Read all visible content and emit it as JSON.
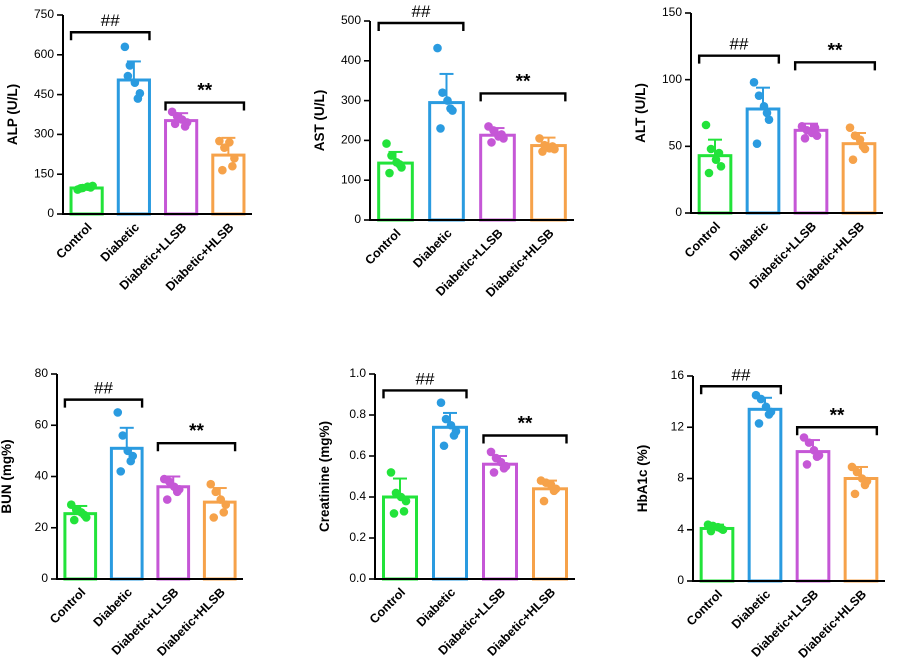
{
  "colors": [
    "#22e33a",
    "#2a9be0",
    "#c557d6",
    "#f6a24a"
  ],
  "chart_data": [
    {
      "type": "bar",
      "ylabel": "ALP (U/L)",
      "ylim": [
        0,
        750
      ],
      "yticks": [
        0,
        150,
        300,
        450,
        600,
        750
      ],
      "categories": [
        "Control",
        "Diabetic",
        "Diabetic+LLSB",
        "Diabetic+HLSB"
      ],
      "values": [
        98,
        505,
        352,
        222
      ],
      "errors": [
        8,
        70,
        28,
        65
      ],
      "points": [
        [
          92,
          98,
          103,
          106,
          97,
          100
        ],
        [
          630,
          560,
          495,
          455,
          520,
          435
        ],
        [
          385,
          368,
          356,
          345,
          340,
          330
        ],
        [
          275,
          250,
          270,
          210,
          165,
          180
        ]
      ],
      "sig1": {
        "label": "##",
        "from": 0,
        "to": 1,
        "y": 685
      },
      "sig2": {
        "label": "**",
        "from": 2,
        "to": 3,
        "y": 420
      }
    },
    {
      "type": "bar",
      "ylabel": "AST (U/L)",
      "ylim": [
        0,
        500
      ],
      "yticks": [
        0,
        100,
        200,
        300,
        400,
        500
      ],
      "categories": [
        "Control",
        "Diabetic",
        "Diabetic+LLSB",
        "Diabetic+HLSB"
      ],
      "values": [
        143,
        295,
        213,
        187
      ],
      "errors": [
        28,
        72,
        18,
        20
      ],
      "points": [
        [
          192,
          162,
          145,
          132,
          118,
          140
        ],
        [
          432,
          320,
          300,
          275,
          230,
          280
        ],
        [
          235,
          225,
          210,
          205,
          195,
          215
        ],
        [
          205,
          188,
          180,
          178,
          172,
          185
        ]
      ],
      "sig1": {
        "label": "##",
        "from": 0,
        "to": 1,
        "y": 495
      },
      "sig2": {
        "label": "**",
        "from": 2,
        "to": 3,
        "y": 318
      }
    },
    {
      "type": "bar",
      "ylabel": "ALT (U/L)",
      "ylim": [
        0,
        150
      ],
      "yticks": [
        0,
        50,
        100,
        150
      ],
      "categories": [
        "Control",
        "Diabetic",
        "Diabetic+LLSB",
        "Diabetic+HLSB"
      ],
      "values": [
        43,
        78,
        62,
        52
      ],
      "errors": [
        12,
        16,
        5,
        8
      ],
      "points": [
        [
          66,
          48,
          40,
          35,
          30,
          45
        ],
        [
          98,
          88,
          80,
          70,
          52,
          75
        ],
        [
          65,
          62,
          60,
          58,
          56,
          64
        ],
        [
          64,
          58,
          55,
          48,
          40,
          50
        ]
      ],
      "sig1": {
        "label": "##",
        "from": 0,
        "to": 1,
        "y": 118
      },
      "sig2": {
        "label": "**",
        "from": 2,
        "to": 3,
        "y": 113
      }
    },
    {
      "type": "bar",
      "ylabel": "BUN (mg%)",
      "ylim": [
        0,
        80
      ],
      "yticks": [
        0,
        20,
        40,
        60,
        80
      ],
      "categories": [
        "Control",
        "Diabetic",
        "Diabetic+LLSB",
        "Diabetic+HLSB"
      ],
      "values": [
        25.5,
        51,
        36,
        30
      ],
      "errors": [
        3,
        8,
        4,
        5.5
      ],
      "points": [
        [
          29,
          27,
          26,
          24,
          23,
          25
        ],
        [
          65,
          56,
          50,
          48,
          42,
          46
        ],
        [
          39,
          38,
          36,
          35,
          31,
          34
        ],
        [
          37,
          34,
          31,
          29,
          24,
          26
        ]
      ],
      "sig1": {
        "label": "##",
        "from": 0,
        "to": 1,
        "y": 70
      },
      "sig2": {
        "label": "**",
        "from": 2,
        "to": 3,
        "y": 53
      }
    },
    {
      "type": "bar",
      "ylabel": "Creatinine (mg%)",
      "ylim": [
        0,
        1.0
      ],
      "yticks": [
        0.0,
        0.2,
        0.4,
        0.6,
        0.8,
        1.0
      ],
      "categories": [
        "Control",
        "Diabetic",
        "Diabetic+LLSB",
        "Diabetic+HLSB"
      ],
      "values": [
        0.4,
        0.74,
        0.56,
        0.44
      ],
      "errors": [
        0.09,
        0.07,
        0.04,
        0.04
      ],
      "points": [
        [
          0.52,
          0.42,
          0.4,
          0.38,
          0.32,
          0.33
        ],
        [
          0.86,
          0.78,
          0.75,
          0.72,
          0.65,
          0.7
        ],
        [
          0.62,
          0.59,
          0.57,
          0.55,
          0.52,
          0.54
        ],
        [
          0.48,
          0.47,
          0.46,
          0.44,
          0.38,
          0.43
        ]
      ],
      "sig1": {
        "label": "##",
        "from": 0,
        "to": 1,
        "y": 0.92
      },
      "sig2": {
        "label": "**",
        "from": 2,
        "to": 3,
        "y": 0.7
      }
    },
    {
      "type": "bar",
      "ylabel": "HbA1c (%)",
      "ylim": [
        0,
        16
      ],
      "yticks": [
        0,
        4,
        8,
        12,
        16
      ],
      "categories": [
        "Control",
        "Diabetic",
        "Diabetic+LLSB",
        "Diabetic+HLSB"
      ],
      "values": [
        4.1,
        13.4,
        10.1,
        8.0
      ],
      "errors": [
        0.3,
        0.9,
        0.9,
        0.9
      ],
      "points": [
        [
          4.4,
          4.3,
          4.2,
          4.0,
          3.9,
          4.1
        ],
        [
          14.5,
          14.2,
          13.6,
          13.2,
          12.3,
          13.0
        ],
        [
          11.2,
          10.8,
          10.2,
          9.8,
          9.1,
          9.7
        ],
        [
          8.9,
          8.5,
          8.0,
          7.8,
          6.8,
          7.5
        ]
      ],
      "sig1": {
        "label": "##",
        "from": 0,
        "to": 1,
        "y": 15.2
      },
      "sig2": {
        "label": "**",
        "from": 2,
        "to": 3,
        "y": 12.0
      }
    }
  ]
}
